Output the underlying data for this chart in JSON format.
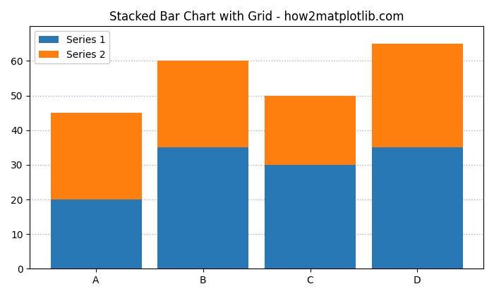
{
  "categories": [
    "A",
    "B",
    "C",
    "D"
  ],
  "series1": [
    20,
    35,
    30,
    35
  ],
  "series2": [
    25,
    25,
    20,
    30
  ],
  "series1_color": "#2878b5",
  "series2_color": "#ff7f0e",
  "series1_label": "Series 1",
  "series2_label": "Series 2",
  "title": "Stacked Bar Chart with Grid - how2matplotlib.com",
  "xlabel": "",
  "ylabel": "",
  "ylim": [
    0,
    70
  ],
  "yticks": [
    0,
    10,
    20,
    30,
    40,
    50,
    60
  ],
  "grid_color": "#b0b0b0",
  "grid_linestyle": ":",
  "grid_linewidth": 1.0,
  "bar_width": 0.85,
  "legend_loc": "upper left",
  "title_fontsize": 12,
  "background_color": "#ffffff",
  "figsize": [
    7.0,
    4.2
  ],
  "dpi": 100
}
